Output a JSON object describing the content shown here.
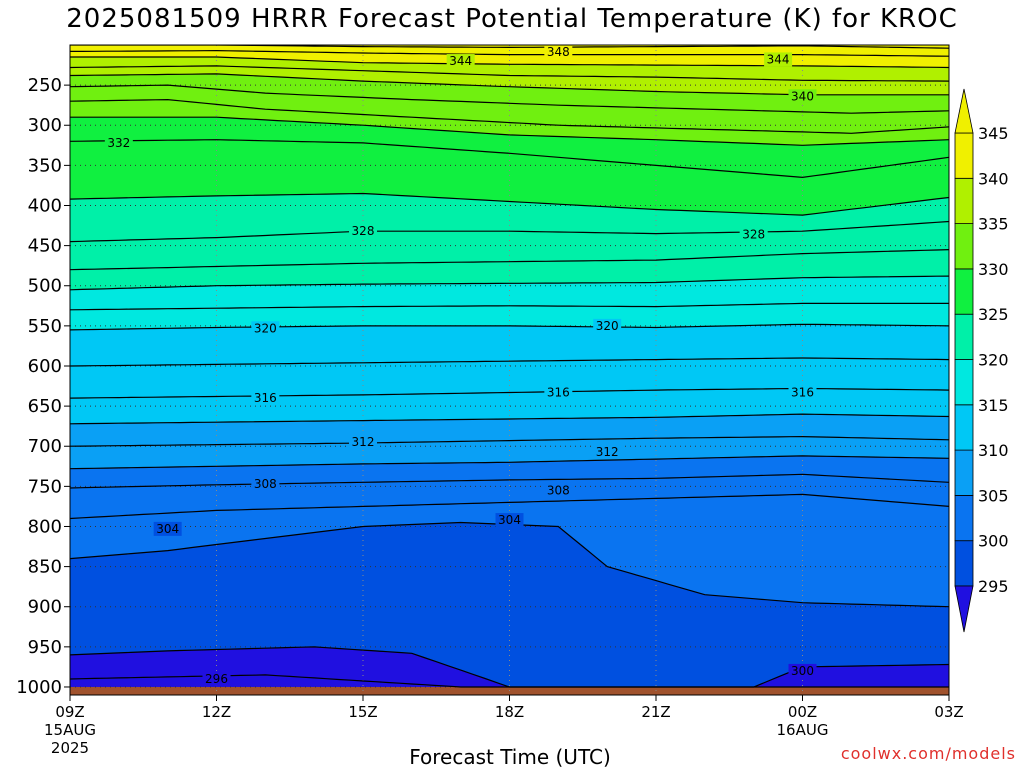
{
  "chart_data": {
    "type": "heatmap",
    "title": "2025081509 HRRR Forecast Potential Temperature (K) for KROC",
    "xlabel": "Forecast Time (UTC)",
    "ylabel": "",
    "credit": "coolwx.com/models",
    "x_ticks": [
      {
        "hour": 0,
        "label": "09Z",
        "sub1": "15AUG",
        "sub2": "2025"
      },
      {
        "hour": 3,
        "label": "12Z"
      },
      {
        "hour": 6,
        "label": "15Z"
      },
      {
        "hour": 9,
        "label": "18Z"
      },
      {
        "hour": 12,
        "label": "21Z"
      },
      {
        "hour": 15,
        "label": "00Z",
        "sub1": "16AUG"
      },
      {
        "hour": 18,
        "label": "03Z"
      }
    ],
    "y_ticks": [
      250,
      300,
      350,
      400,
      450,
      500,
      550,
      600,
      650,
      700,
      750,
      800,
      850,
      900,
      950,
      1000
    ],
    "ylim_hPa": [
      200,
      1010
    ],
    "xlim_hours": [
      0,
      18
    ],
    "grid": true,
    "colorbar": {
      "levels": [
        295,
        300,
        305,
        310,
        315,
        320,
        325,
        330,
        335,
        340,
        345
      ],
      "colors": [
        "#2010e0",
        "#0050e0",
        "#0a74f0",
        "#0aa0f5",
        "#00c8f5",
        "#00e8e0",
        "#00f0a8",
        "#10f040",
        "#70f010",
        "#b0f000",
        "#f0f000"
      ],
      "extend": "both",
      "placement": "right"
    },
    "series": [
      {
        "theta": 296,
        "profile": [
          [
            0,
            990
          ],
          [
            4,
            985
          ],
          [
            8,
            1000
          ]
        ]
      },
      {
        "theta": 300,
        "profile": [
          [
            0,
            960
          ],
          [
            2,
            955
          ],
          [
            5,
            950
          ],
          [
            7,
            958
          ],
          [
            9,
            1000
          ],
          [
            14,
            1000
          ],
          [
            15,
            975
          ],
          [
            18,
            972
          ]
        ]
      },
      {
        "theta": 304,
        "profile": [
          [
            0,
            840
          ],
          [
            2,
            830
          ],
          [
            4,
            815
          ],
          [
            6,
            800
          ],
          [
            8,
            795
          ],
          [
            10,
            800
          ],
          [
            11,
            850
          ],
          [
            13,
            885
          ],
          [
            15,
            895
          ],
          [
            18,
            900
          ]
        ]
      },
      {
        "theta": 306,
        "profile": [
          [
            0,
            790
          ],
          [
            3,
            780
          ],
          [
            6,
            775
          ],
          [
            9,
            770
          ],
          [
            12,
            765
          ],
          [
            15,
            760
          ],
          [
            18,
            775
          ]
        ]
      },
      {
        "theta": 308,
        "profile": [
          [
            0,
            752
          ],
          [
            3,
            748
          ],
          [
            6,
            745
          ],
          [
            9,
            742
          ],
          [
            12,
            740
          ],
          [
            15,
            735
          ],
          [
            18,
            745
          ]
        ]
      },
      {
        "theta": 310,
        "profile": [
          [
            0,
            728
          ],
          [
            3,
            725
          ],
          [
            6,
            722
          ],
          [
            9,
            720
          ],
          [
            12,
            716
          ],
          [
            15,
            712
          ],
          [
            18,
            715
          ]
        ]
      },
      {
        "theta": 312,
        "profile": [
          [
            0,
            700
          ],
          [
            3,
            698
          ],
          [
            6,
            696
          ],
          [
            9,
            693
          ],
          [
            12,
            690
          ],
          [
            15,
            688
          ],
          [
            18,
            692
          ]
        ]
      },
      {
        "theta": 314,
        "profile": [
          [
            0,
            672
          ],
          [
            3,
            670
          ],
          [
            6,
            668
          ],
          [
            9,
            666
          ],
          [
            12,
            664
          ],
          [
            15,
            660
          ],
          [
            18,
            663
          ]
        ]
      },
      {
        "theta": 316,
        "profile": [
          [
            0,
            640
          ],
          [
            3,
            638
          ],
          [
            6,
            636
          ],
          [
            9,
            633
          ],
          [
            12,
            630
          ],
          [
            15,
            628
          ],
          [
            18,
            630
          ]
        ]
      },
      {
        "theta": 318,
        "profile": [
          [
            0,
            600
          ],
          [
            3,
            598
          ],
          [
            6,
            596
          ],
          [
            9,
            594
          ],
          [
            12,
            592
          ],
          [
            15,
            590
          ],
          [
            18,
            592
          ]
        ]
      },
      {
        "theta": 320,
        "profile": [
          [
            0,
            555
          ],
          [
            3,
            552
          ],
          [
            6,
            550
          ],
          [
            9,
            550
          ],
          [
            12,
            552
          ],
          [
            15,
            548
          ],
          [
            18,
            550
          ]
        ]
      },
      {
        "theta": 322,
        "profile": [
          [
            0,
            530
          ],
          [
            3,
            528
          ],
          [
            6,
            526
          ],
          [
            9,
            525
          ],
          [
            12,
            526
          ],
          [
            15,
            522
          ],
          [
            18,
            522
          ]
        ]
      },
      {
        "theta": 324,
        "profile": [
          [
            0,
            505
          ],
          [
            3,
            500
          ],
          [
            6,
            498
          ],
          [
            9,
            497
          ],
          [
            12,
            496
          ],
          [
            15,
            490
          ],
          [
            18,
            488
          ]
        ]
      },
      {
        "theta": 326,
        "profile": [
          [
            0,
            480
          ],
          [
            3,
            476
          ],
          [
            6,
            472
          ],
          [
            9,
            470
          ],
          [
            12,
            468
          ],
          [
            15,
            460
          ],
          [
            18,
            455
          ]
        ]
      },
      {
        "theta": 328,
        "profile": [
          [
            0,
            445
          ],
          [
            3,
            440
          ],
          [
            6,
            432
          ],
          [
            9,
            432
          ],
          [
            12,
            435
          ],
          [
            15,
            432
          ],
          [
            18,
            420
          ]
        ]
      },
      {
        "theta": 330,
        "profile": [
          [
            0,
            392
          ],
          [
            3,
            388
          ],
          [
            6,
            385
          ],
          [
            9,
            395
          ],
          [
            12,
            405
          ],
          [
            15,
            412
          ],
          [
            18,
            390
          ]
        ]
      },
      {
        "theta": 332,
        "profile": [
          [
            0,
            320
          ],
          [
            3,
            318
          ],
          [
            6,
            322
          ],
          [
            9,
            335
          ],
          [
            12,
            350
          ],
          [
            15,
            365
          ],
          [
            18,
            340
          ]
        ]
      },
      {
        "theta": 334,
        "profile": [
          [
            0,
            290
          ],
          [
            3,
            290
          ],
          [
            6,
            300
          ],
          [
            9,
            312
          ],
          [
            12,
            318
          ],
          [
            15,
            325
          ],
          [
            18,
            318
          ]
        ]
      },
      {
        "theta": 336,
        "profile": [
          [
            0,
            270
          ],
          [
            2,
            268
          ],
          [
            4,
            280
          ],
          [
            7,
            290
          ],
          [
            10,
            300
          ],
          [
            13,
            305
          ],
          [
            16,
            310
          ],
          [
            18,
            302
          ]
        ]
      },
      {
        "theta": 338,
        "profile": [
          [
            0,
            252
          ],
          [
            2,
            250
          ],
          [
            4,
            260
          ],
          [
            7,
            268
          ],
          [
            10,
            275
          ],
          [
            13,
            280
          ],
          [
            16,
            285
          ],
          [
            18,
            282
          ]
        ]
      },
      {
        "theta": 340,
        "profile": [
          [
            0,
            238
          ],
          [
            3,
            236
          ],
          [
            6,
            245
          ],
          [
            9,
            252
          ],
          [
            12,
            258
          ],
          [
            15,
            262
          ],
          [
            18,
            262
          ]
        ]
      },
      {
        "theta": 342,
        "profile": [
          [
            0,
            228
          ],
          [
            3,
            226
          ],
          [
            6,
            232
          ],
          [
            9,
            238
          ],
          [
            12,
            240
          ],
          [
            15,
            244
          ],
          [
            18,
            245
          ]
        ]
      },
      {
        "theta": 344,
        "profile": [
          [
            0,
            215
          ],
          [
            3,
            215
          ],
          [
            6,
            222
          ],
          [
            9,
            224
          ],
          [
            12,
            225
          ],
          [
            15,
            226
          ],
          [
            18,
            228
          ]
        ]
      },
      {
        "theta": 346,
        "profile": [
          [
            0,
            208
          ],
          [
            3,
            207
          ],
          [
            6,
            210
          ],
          [
            9,
            212
          ],
          [
            12,
            212
          ],
          [
            15,
            212
          ],
          [
            18,
            214
          ]
        ]
      },
      {
        "theta": 348,
        "profile": [
          [
            0,
            200
          ],
          [
            3,
            200
          ],
          [
            6,
            202
          ],
          [
            9,
            203
          ],
          [
            12,
            202
          ],
          [
            15,
            201
          ],
          [
            18,
            204
          ]
        ]
      }
    ],
    "contour_labels": [
      {
        "text": "348",
        "hour": 10,
        "p": 209
      },
      {
        "text": "344",
        "hour": 8,
        "p": 220
      },
      {
        "text": "344",
        "hour": 14.5,
        "p": 218
      },
      {
        "text": "340",
        "hour": 15,
        "p": 264
      },
      {
        "text": "332",
        "hour": 1,
        "p": 322
      },
      {
        "text": "328",
        "hour": 6,
        "p": 432
      },
      {
        "text": "328",
        "hour": 14,
        "p": 436
      },
      {
        "text": "320",
        "hour": 4,
        "p": 553
      },
      {
        "text": "320",
        "hour": 11,
        "p": 550
      },
      {
        "text": "316",
        "hour": 4,
        "p": 640
      },
      {
        "text": "316",
        "hour": 10,
        "p": 633
      },
      {
        "text": "316",
        "hour": 15,
        "p": 633
      },
      {
        "text": "312",
        "hour": 6,
        "p": 695
      },
      {
        "text": "312",
        "hour": 11,
        "p": 707
      },
      {
        "text": "308",
        "hour": 4,
        "p": 747
      },
      {
        "text": "308",
        "hour": 10,
        "p": 755
      },
      {
        "text": "304",
        "hour": 2,
        "p": 803
      },
      {
        "text": "304",
        "hour": 9,
        "p": 792
      },
      {
        "text": "296",
        "hour": 3,
        "p": 990
      },
      {
        "text": "300",
        "hour": 15,
        "p": 980
      }
    ]
  }
}
